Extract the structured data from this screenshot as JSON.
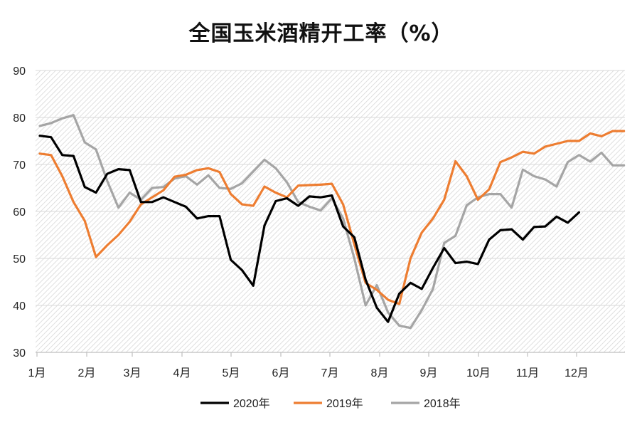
{
  "chart_data": {
    "type": "line",
    "title": "全国玉米酒精开工率（%）",
    "ylim": [
      30,
      90
    ],
    "y_ticks": [
      30,
      40,
      50,
      60,
      70,
      80,
      90
    ],
    "x_tick_labels": [
      "1月",
      "2月",
      "3月",
      "4月",
      "5月",
      "6月",
      "7月",
      "8月",
      "9月",
      "10月",
      "11月",
      "12月"
    ],
    "x_note": "x values are week numbers (1-53)",
    "grid": true,
    "legend_position": "bottom",
    "series": [
      {
        "name": "2020年",
        "color": "#000000",
        "x": [
          1,
          2,
          3,
          4,
          5,
          6,
          7,
          8,
          9,
          10,
          11,
          12,
          13,
          14,
          15,
          16,
          17,
          18,
          19,
          20,
          21,
          22,
          23,
          24,
          25,
          26,
          27,
          28,
          29,
          30,
          31,
          32,
          33,
          34,
          35,
          36,
          37,
          38,
          39,
          40,
          41,
          42,
          43,
          44,
          45,
          46,
          47,
          48,
          49
        ],
        "values": [
          76.1,
          75.8,
          72,
          71.8,
          65.2,
          64,
          68,
          69,
          68.8,
          62,
          62,
          63,
          62,
          61,
          58.5,
          59,
          59,
          49.7,
          47.5,
          44.2,
          57,
          62.2,
          62.8,
          61.2,
          63.2,
          63,
          63.4,
          56.8,
          54.5,
          45.5,
          39.5,
          36.5,
          42.5,
          44.8,
          43.5,
          48,
          52.2,
          49,
          49.3,
          48.8,
          54,
          56,
          56.2,
          54,
          56.7,
          56.8,
          58.9,
          57.6,
          59.8
        ]
      },
      {
        "name": "2019年",
        "color": "#ED7D31",
        "x": [
          1,
          2,
          3,
          4,
          5,
          6,
          7,
          8,
          9,
          10,
          11,
          12,
          13,
          14,
          15,
          16,
          17,
          18,
          19,
          20,
          21,
          22,
          23,
          24,
          25,
          26,
          27,
          28,
          29,
          30,
          31,
          32,
          33,
          34,
          35,
          36,
          37,
          38,
          39,
          40,
          41,
          42,
          43,
          44,
          45,
          46,
          47,
          48,
          49,
          50,
          51,
          52,
          53
        ],
        "values": [
          72.3,
          72,
          67.5,
          62,
          58,
          50.3,
          52.8,
          55,
          57.8,
          61.5,
          63,
          64.5,
          67.4,
          67.8,
          68.8,
          69.2,
          68.4,
          63.7,
          61.5,
          61.2,
          65.3,
          64,
          63,
          65.5,
          65.6,
          65.7,
          65.9,
          61.5,
          53,
          44.8,
          43.3,
          41.2,
          40.3,
          50,
          55.5,
          58.5,
          62.5,
          70.7,
          67.5,
          62.5,
          64.7,
          70.5,
          71.5,
          72.7,
          72.3,
          73.8,
          74.4,
          75,
          75,
          76.6,
          76,
          77.1,
          77.1
        ]
      },
      {
        "name": "2018年",
        "color": "#A5A5A5",
        "x": [
          1,
          2,
          3,
          4,
          5,
          6,
          7,
          8,
          9,
          10,
          11,
          12,
          13,
          14,
          15,
          16,
          17,
          18,
          19,
          20,
          21,
          22,
          23,
          24,
          25,
          26,
          27,
          28,
          29,
          30,
          31,
          32,
          33,
          34,
          35,
          36,
          37,
          38,
          39,
          40,
          41,
          42,
          43,
          44,
          45,
          46,
          47,
          48,
          49,
          50,
          51,
          52,
          53
        ],
        "values": [
          78.2,
          78.8,
          79.8,
          80.5,
          74.7,
          73.2,
          66.5,
          60.8,
          64,
          62.5,
          65,
          65.2,
          67,
          67.5,
          65.7,
          67.7,
          65,
          64.8,
          66,
          68.5,
          71,
          69.2,
          66.2,
          62,
          61,
          60.2,
          62.8,
          58.5,
          50,
          40,
          44.3,
          38.5,
          35.7,
          35.2,
          39,
          43.5,
          53.3,
          54.8,
          61.3,
          63,
          63.7,
          63.7,
          60.8,
          68.9,
          67.5,
          66.8,
          65.3,
          70.5,
          72,
          70.6,
          72.5,
          69.8,
          69.8
        ]
      }
    ]
  }
}
